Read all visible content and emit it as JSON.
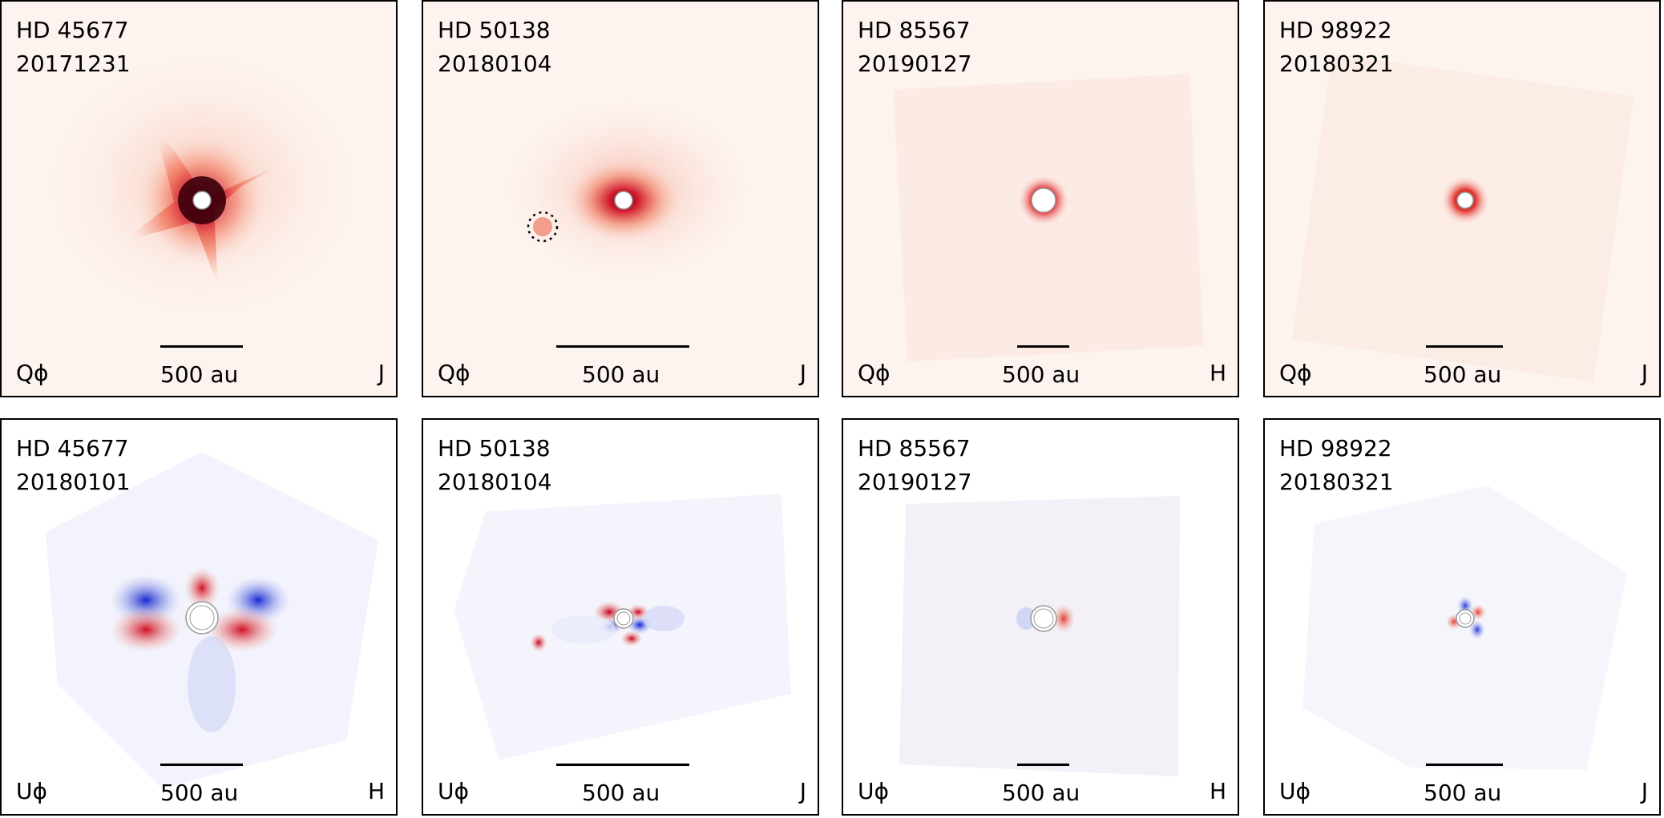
{
  "panels": [
    {
      "row": "top",
      "star": "HD 45677",
      "date": "20171231",
      "stokes": "Qϕ",
      "band": "J",
      "scale_label": "500 au",
      "kind": "Q",
      "style": "star3"
    },
    {
      "row": "top",
      "star": "HD 50138",
      "date": "20180104",
      "stokes": "Qϕ",
      "band": "J",
      "scale_label": "500 au",
      "kind": "Q",
      "style": "blob"
    },
    {
      "row": "top",
      "star": "HD 85567",
      "date": "20190127",
      "stokes": "Qϕ",
      "band": "H",
      "scale_label": "500 au",
      "kind": "Q",
      "style": "compact"
    },
    {
      "row": "top",
      "star": "HD 98922",
      "date": "20180321",
      "stokes": "Qϕ",
      "band": "J",
      "scale_label": "500 au",
      "kind": "Q",
      "style": "compact-small"
    },
    {
      "row": "bottom",
      "star": "HD 45677",
      "date": "20180101",
      "stokes": "Uϕ",
      "band": "H",
      "scale_label": "500 au",
      "kind": "U",
      "style": "butterfly-large"
    },
    {
      "row": "bottom",
      "star": "HD 50138",
      "date": "20180104",
      "stokes": "Uϕ",
      "band": "J",
      "scale_label": "500 au",
      "kind": "U",
      "style": "butterfly-mid"
    },
    {
      "row": "bottom",
      "star": "HD 85567",
      "date": "20190127",
      "stokes": "Uϕ",
      "band": "H",
      "scale_label": "500 au",
      "kind": "U",
      "style": "butterfly-faint"
    },
    {
      "row": "bottom",
      "star": "HD 98922",
      "date": "20180321",
      "stokes": "Uϕ",
      "band": "J",
      "scale_label": "500 au",
      "kind": "U",
      "style": "butterfly-tiny"
    }
  ],
  "colors": {
    "positive": "#c8102e",
    "negative": "#1f2fd0",
    "background": "#fdf3ef",
    "frame": "#000000"
  }
}
